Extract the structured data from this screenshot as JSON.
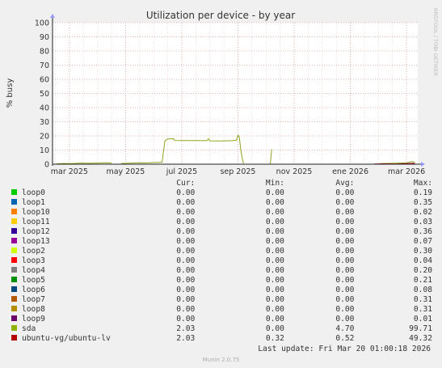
{
  "chart_data": {
    "type": "line",
    "title": "Utilization per device - by year",
    "ylabel": "% busy",
    "side_label": "RRDTOOL / TOBI OETIKER",
    "ylim": [
      0,
      100
    ],
    "y_ticks": [
      0,
      10,
      20,
      30,
      40,
      50,
      60,
      70,
      80,
      90,
      100
    ],
    "x_tick_labels": [
      "mar 2025",
      "may 2025",
      "jul 2025",
      "sep 2025",
      "nov 2025",
      "ene 2026",
      "mar 2026"
    ],
    "x_tick_months": [
      0,
      2,
      4,
      6,
      8,
      10,
      12
    ],
    "x_range_months": [
      -0.6,
      12.4
    ],
    "grid": true,
    "series": [
      {
        "name": "sda",
        "color": "#8ea51f",
        "segments": [
          [
            [
              -0.45,
              0.3
            ],
            [
              -0.2,
              0.5
            ],
            [
              0.1,
              0.4
            ],
            [
              0.4,
              0.8
            ],
            [
              0.7,
              0.6
            ],
            [
              1.0,
              0.8
            ],
            [
              1.3,
              1.0
            ],
            [
              1.5,
              0.8
            ]
          ],
          [
            [
              1.85,
              0.5
            ],
            [
              2.2,
              0.8
            ],
            [
              2.5,
              1.0
            ],
            [
              2.8,
              0.9
            ],
            [
              3.0,
              1.2
            ],
            [
              3.2,
              1.2
            ],
            [
              3.3,
              1.5
            ],
            [
              3.35,
              9.0
            ],
            [
              3.4,
              16.5
            ],
            [
              3.5,
              17.8
            ],
            [
              3.7,
              18.0
            ],
            [
              3.75,
              16.8
            ],
            [
              4.0,
              16.7
            ],
            [
              4.5,
              16.7
            ],
            [
              4.9,
              16.6
            ],
            [
              4.95,
              18.0
            ],
            [
              5.0,
              16.5
            ],
            [
              5.5,
              16.4
            ],
            [
              5.8,
              16.6
            ],
            [
              5.95,
              17.0
            ],
            [
              6.0,
              20.5
            ],
            [
              6.05,
              19.0
            ],
            [
              6.1,
              10.0
            ],
            [
              6.15,
              4.5
            ],
            [
              6.2,
              0.5
            ]
          ],
          [
            [
              7.15,
              0.0
            ],
            [
              7.2,
              10.5
            ]
          ],
          [
            [
              11.05,
              0.4
            ],
            [
              11.5,
              0.6
            ],
            [
              12.0,
              0.9
            ],
            [
              12.2,
              1.8
            ],
            [
              12.3,
              1.2
            ]
          ]
        ]
      },
      {
        "name": "ubuntu-vg/ubuntu-lv",
        "color": "#b0001f",
        "segments": [
          [
            [
              10.85,
              0.2
            ],
            [
              11.2,
              0.3
            ],
            [
              11.6,
              0.2
            ],
            [
              12.0,
              0.4
            ],
            [
              12.25,
              0.6
            ],
            [
              12.3,
              0.3
            ]
          ]
        ]
      }
    ]
  },
  "legend": {
    "headers": {
      "cur": "Cur:",
      "min": "Min:",
      "avg": "Avg:",
      "max": "Max:"
    },
    "rows": [
      {
        "name": "loop0",
        "color": "#00cc00",
        "cur": "0.00",
        "min": "0.00",
        "avg": "0.00",
        "max": "0.19"
      },
      {
        "name": "loop1",
        "color": "#0066b3",
        "cur": "0.00",
        "min": "0.00",
        "avg": "0.00",
        "max": "0.35"
      },
      {
        "name": "loop10",
        "color": "#ff8000",
        "cur": "0.00",
        "min": "0.00",
        "avg": "0.00",
        "max": "0.02"
      },
      {
        "name": "loop11",
        "color": "#ffcc00",
        "cur": "0.00",
        "min": "0.00",
        "avg": "0.00",
        "max": "0.03"
      },
      {
        "name": "loop12",
        "color": "#330099",
        "cur": "0.00",
        "min": "0.00",
        "avg": "0.00",
        "max": "0.36"
      },
      {
        "name": "loop13",
        "color": "#990099",
        "cur": "0.00",
        "min": "0.00",
        "avg": "0.00",
        "max": "0.07"
      },
      {
        "name": "loop2",
        "color": "#ccff00",
        "cur": "0.00",
        "min": "0.00",
        "avg": "0.00",
        "max": "0.30"
      },
      {
        "name": "loop3",
        "color": "#ff0000",
        "cur": "0.00",
        "min": "0.00",
        "avg": "0.00",
        "max": "0.04"
      },
      {
        "name": "loop4",
        "color": "#808080",
        "cur": "0.00",
        "min": "0.00",
        "avg": "0.00",
        "max": "0.20"
      },
      {
        "name": "loop5",
        "color": "#008f00",
        "cur": "0.00",
        "min": "0.00",
        "avg": "0.00",
        "max": "0.21"
      },
      {
        "name": "loop6",
        "color": "#00487d",
        "cur": "0.00",
        "min": "0.00",
        "avg": "0.00",
        "max": "0.08"
      },
      {
        "name": "loop7",
        "color": "#b35a00",
        "cur": "0.00",
        "min": "0.00",
        "avg": "0.00",
        "max": "0.31"
      },
      {
        "name": "loop8",
        "color": "#b38f00",
        "cur": "0.00",
        "min": "0.00",
        "avg": "0.00",
        "max": "0.31"
      },
      {
        "name": "loop9",
        "color": "#6b006b",
        "cur": "0.00",
        "min": "0.00",
        "avg": "0.00",
        "max": "0.01"
      },
      {
        "name": "sda",
        "color": "#8fb300",
        "cur": "2.03",
        "min": "0.00",
        "avg": "4.70",
        "max": "99.71"
      },
      {
        "name": "ubuntu-vg/ubuntu-lv",
        "color": "#b30000",
        "cur": "2.03",
        "min": "0.32",
        "avg": "0.52",
        "max": "49.32"
      }
    ]
  },
  "last_update": "Last update: Fri Mar 20 01:00:18 2026",
  "footer": "Munin 2.0.75"
}
